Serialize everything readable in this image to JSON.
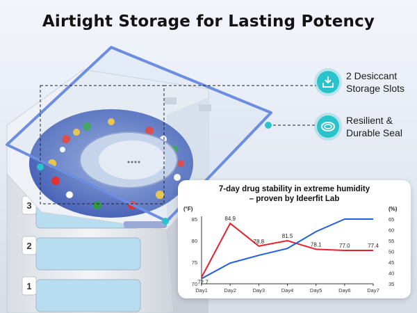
{
  "headline": "Airtight Storage for Lasting Potency",
  "tray_labels": [
    "3",
    "2",
    "1"
  ],
  "features": [
    {
      "icon": "desiccant-tray-icon",
      "line1": "2 Desiccant",
      "line2": "Storage Slots"
    },
    {
      "icon": "seal-ring-icon",
      "line1": "Resilient &",
      "line2": "Durable Seal"
    }
  ],
  "colors": {
    "accent": "#29c3cc",
    "blue_series": "#1f5fe0",
    "red_series": "#e8202a"
  },
  "chart_data": {
    "type": "line",
    "title_line1": "7-day drug stability in extreme humidity",
    "title_line2": "– proven by Ideerfit Lab",
    "categories": [
      "Day1",
      "Day2",
      "Day3",
      "Day4",
      "Day5",
      "Day6",
      "Day7"
    ],
    "left_axis": {
      "unit": "(°F)",
      "ticks": [
        70,
        75,
        80,
        85
      ],
      "range": [
        70,
        85
      ]
    },
    "right_axis": {
      "unit": "(%)",
      "ticks": [
        35,
        40,
        45,
        50,
        55,
        60,
        65
      ],
      "range": [
        35,
        65
      ]
    },
    "series": [
      {
        "axis": "right",
        "color": "#e8202a",
        "values": [
          72.7,
          84.9,
          78.8,
          81.5,
          78.1,
          77.0,
          77.4
        ],
        "labels": [
          "72.7",
          "84.9",
          "78.8",
          "81.5",
          "78.1",
          "77.0",
          "77.4"
        ],
        "plot": [
          38,
          63,
          52.5,
          55,
          51,
          50.5,
          50.5
        ]
      },
      {
        "axis": "left",
        "color": "#1f5fe0",
        "plot": [
          71.2,
          74.8,
          76.6,
          78.2,
          82.1,
          85.0,
          85.0
        ]
      }
    ]
  }
}
